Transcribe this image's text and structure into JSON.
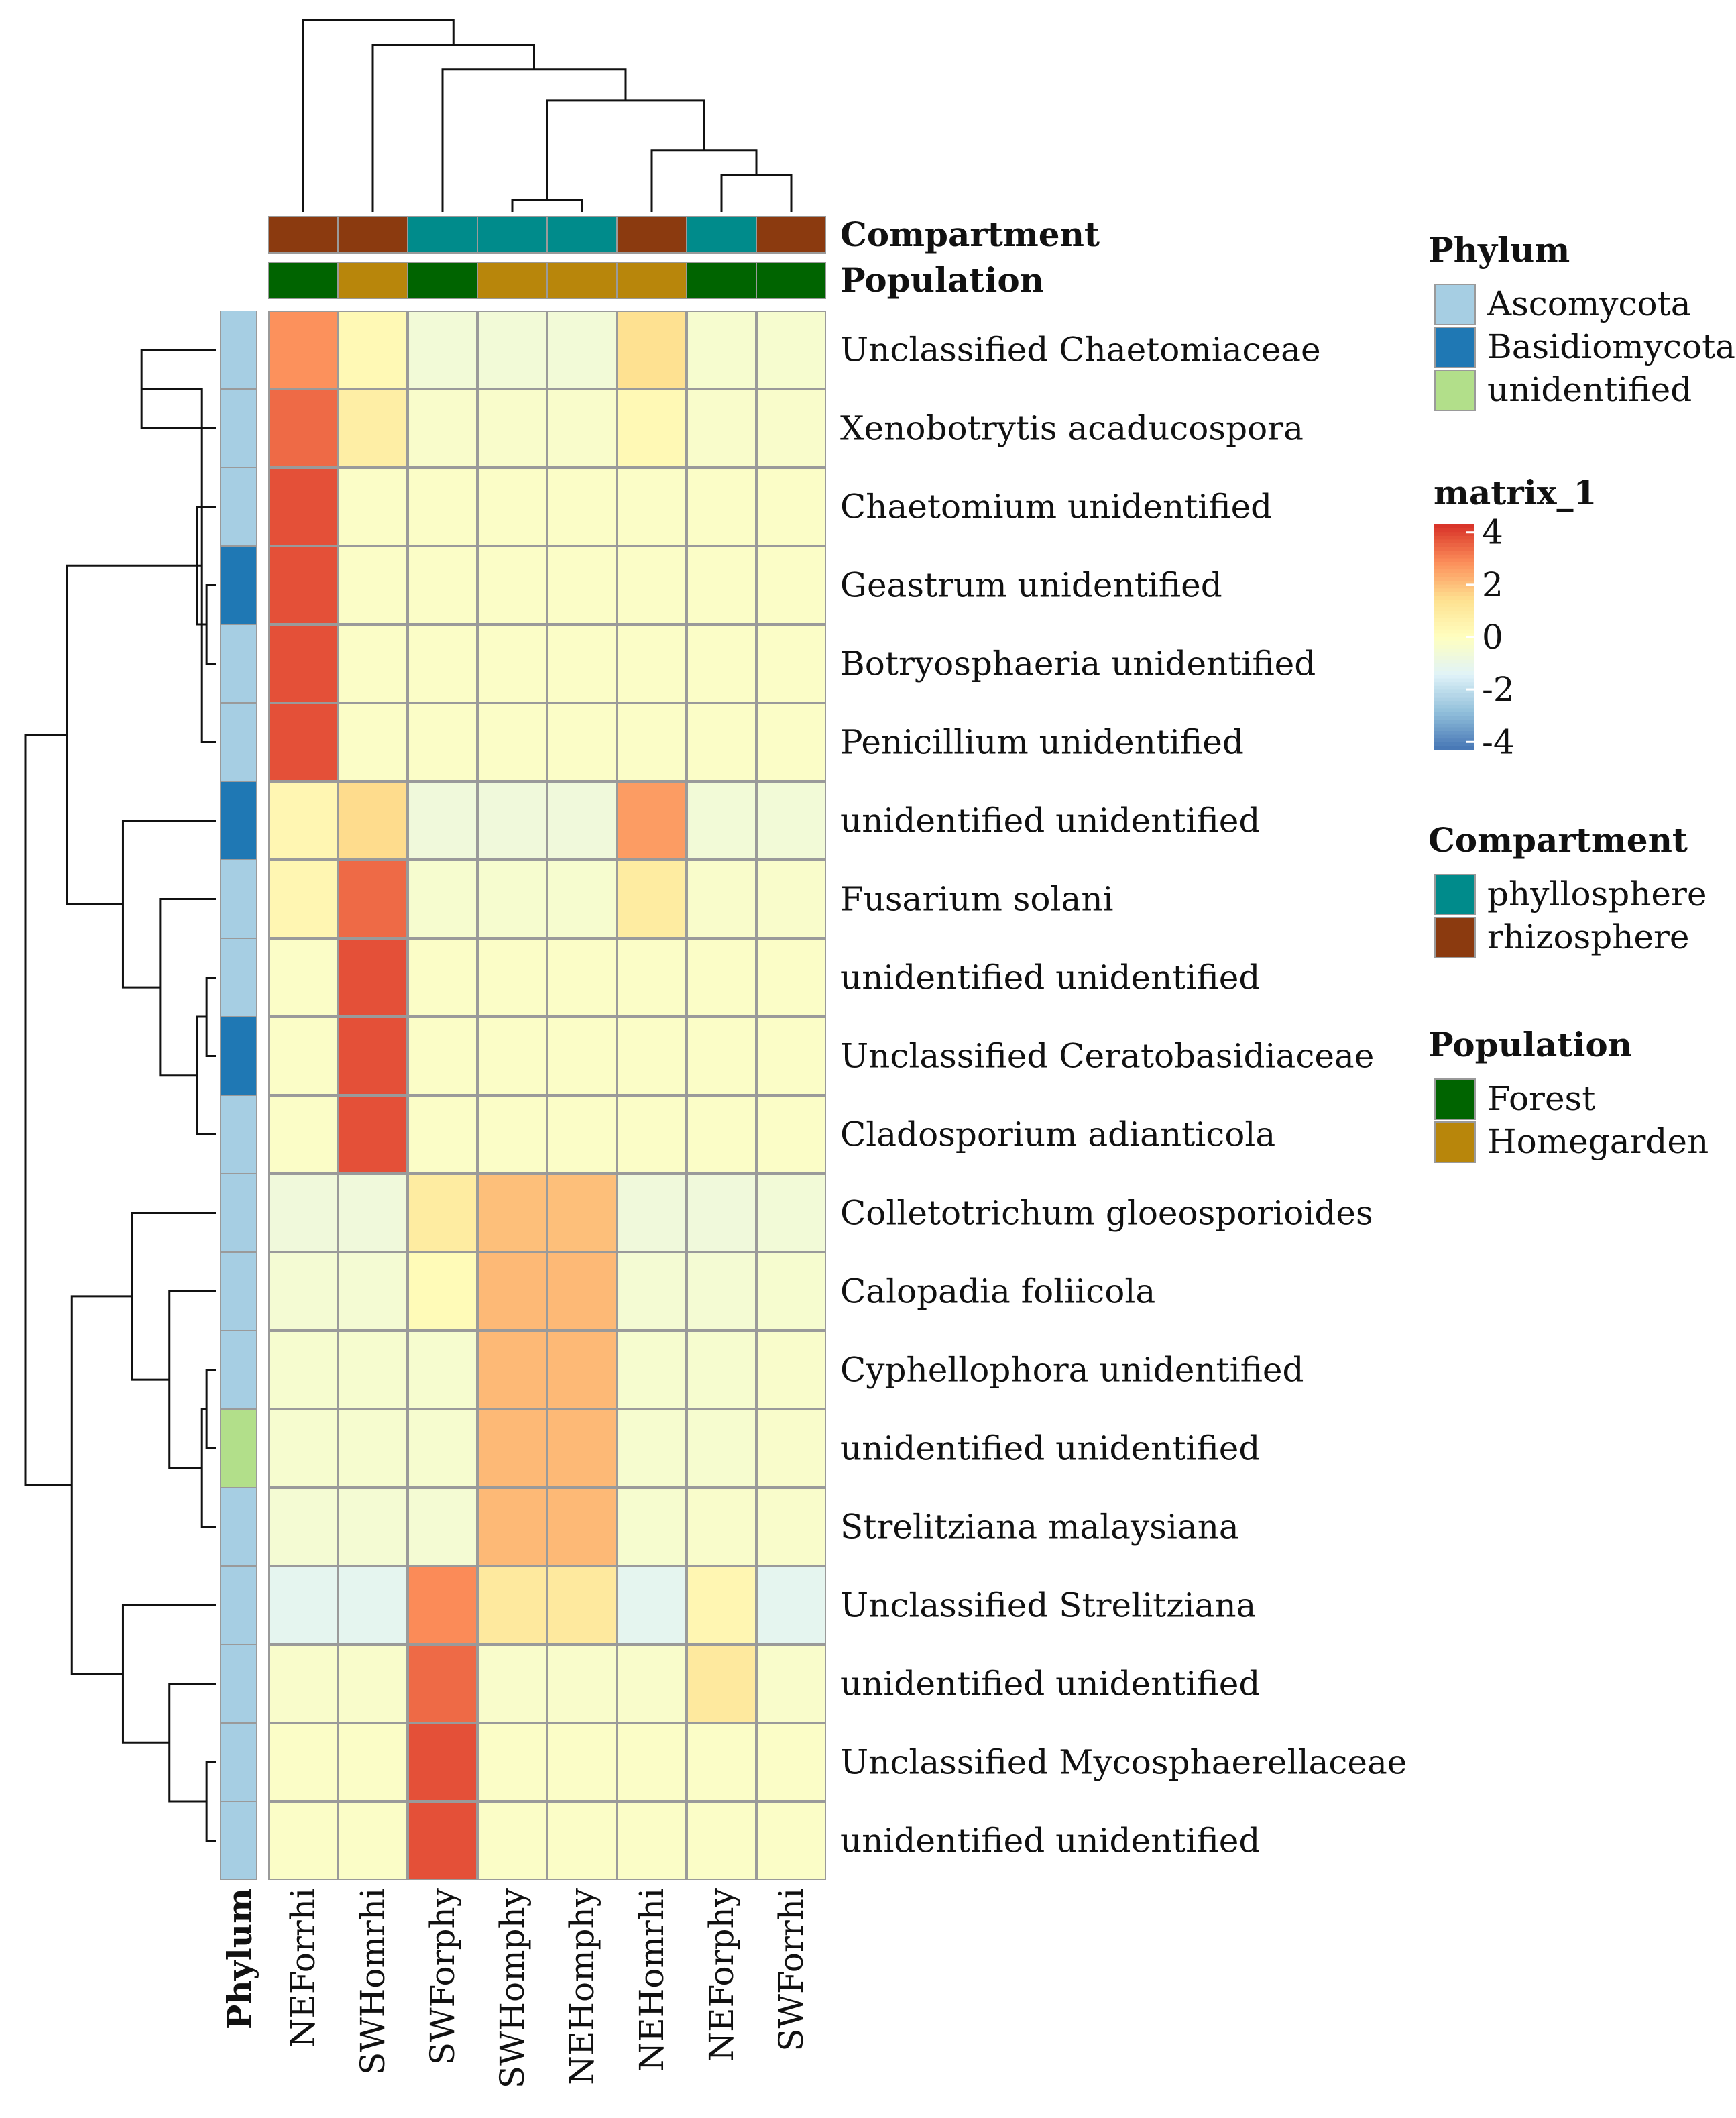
{
  "chart_data": {
    "type": "heatmap",
    "columns": [
      "NEForrhi",
      "SWHomrhi",
      "SWForphy",
      "SWHomphy",
      "NEHomphy",
      "NEHomrhi",
      "NEForphy",
      "SWForrhi"
    ],
    "rows": [
      "Unclassified Chaetomiaceae",
      "Xenobotrytis acaducospora",
      "Chaetomium unidentified",
      "Geastrum unidentified",
      "Botryosphaeria unidentified",
      "Penicillium unidentified",
      "unidentified unidentified",
      "Fusarium solani",
      "unidentified unidentified",
      "Unclassified Ceratobasidiaceae",
      "Cladosporium adianticola",
      "Colletotrichum gloeosporioides",
      "Calopadia foliicola",
      "Cyphellophora unidentified",
      "unidentified unidentified",
      "Strelitziana malaysiana",
      "Unclassified  Strelitziana",
      "unidentified unidentified",
      "Unclassified Mycosphaerellaceae",
      "unidentified unidentified"
    ],
    "values": [
      [
        2.8,
        0.3,
        -0.6,
        -0.6,
        -0.6,
        1.4,
        -0.4,
        -0.4
      ],
      [
        3.4,
        0.8,
        -0.3,
        -0.3,
        -0.3,
        0.3,
        -0.3,
        -0.3
      ],
      [
        3.8,
        -0.2,
        -0.2,
        -0.2,
        -0.2,
        -0.2,
        -0.2,
        -0.2
      ],
      [
        3.8,
        -0.2,
        -0.2,
        -0.2,
        -0.2,
        -0.2,
        -0.2,
        -0.2
      ],
      [
        3.8,
        -0.2,
        -0.2,
        -0.2,
        -0.2,
        -0.2,
        -0.2,
        -0.2
      ],
      [
        3.8,
        -0.2,
        -0.2,
        -0.2,
        -0.2,
        -0.2,
        -0.2,
        -0.2
      ],
      [
        0.4,
        1.5,
        -0.7,
        -0.7,
        -0.7,
        2.6,
        -0.6,
        -0.6
      ],
      [
        0.4,
        3.4,
        -0.4,
        -0.4,
        -0.4,
        0.9,
        -0.3,
        -0.3
      ],
      [
        -0.2,
        3.8,
        -0.2,
        -0.2,
        -0.2,
        -0.2,
        -0.2,
        -0.2
      ],
      [
        -0.2,
        3.8,
        -0.2,
        -0.2,
        -0.2,
        -0.2,
        -0.2,
        -0.2
      ],
      [
        -0.2,
        3.8,
        -0.2,
        -0.2,
        -0.2,
        -0.2,
        -0.2,
        -0.2
      ],
      [
        -0.7,
        -0.7,
        0.9,
        2.0,
        2.0,
        -0.7,
        -0.7,
        -0.6
      ],
      [
        -0.5,
        -0.5,
        0.2,
        2.1,
        2.1,
        -0.5,
        -0.5,
        -0.4
      ],
      [
        -0.4,
        -0.4,
        -0.4,
        2.1,
        2.1,
        -0.4,
        -0.4,
        -0.3
      ],
      [
        -0.4,
        -0.4,
        -0.4,
        2.1,
        2.1,
        -0.4,
        -0.4,
        -0.3
      ],
      [
        -0.5,
        -0.5,
        -0.5,
        2.1,
        2.1,
        -0.4,
        -0.3,
        -0.3
      ],
      [
        -1.2,
        -1.2,
        2.9,
        1.0,
        1.0,
        -1.2,
        0.4,
        -1.2
      ],
      [
        -0.3,
        -0.3,
        3.4,
        -0.3,
        -0.3,
        -0.3,
        1.0,
        -0.3
      ],
      [
        -0.2,
        -0.2,
        3.8,
        -0.2,
        -0.2,
        -0.2,
        -0.2,
        -0.2
      ],
      [
        -0.2,
        -0.2,
        3.8,
        -0.2,
        -0.2,
        -0.2,
        -0.2,
        -0.2
      ]
    ],
    "color_scale": {
      "name": "matrix_1",
      "range": [
        -4.3,
        4.3
      ],
      "ticks": [
        "4",
        "2",
        "0",
        "-2",
        "-4"
      ],
      "tick_values": [
        4,
        2,
        0,
        -2,
        -4
      ],
      "colors": [
        "#4575b4",
        "#91bfdb",
        "#e0f3f8",
        "#ffffbf",
        "#fee090",
        "#fc8d59",
        "#d73027"
      ]
    },
    "row_annotation": {
      "name": "Phylum",
      "values": [
        "Ascomycota",
        "Ascomycota",
        "Ascomycota",
        "Basidiomycota",
        "Ascomycota",
        "Ascomycota",
        "Basidiomycota",
        "Ascomycota",
        "Ascomycota",
        "Basidiomycota",
        "Ascomycota",
        "Ascomycota",
        "Ascomycota",
        "Ascomycota",
        "unidentified",
        "Ascomycota",
        "Ascomycota",
        "Ascomycota",
        "Ascomycota",
        "Ascomycota"
      ]
    },
    "column_annotations": [
      {
        "name": "Compartment",
        "values": [
          "rhizosphere",
          "rhizosphere",
          "phyllosphere",
          "phyllosphere",
          "phyllosphere",
          "rhizosphere",
          "phyllosphere",
          "rhizosphere"
        ]
      },
      {
        "name": "Population",
        "values": [
          "Forest",
          "Homegarden",
          "Forest",
          "Homegarden",
          "Homegarden",
          "Homegarden",
          "Forest",
          "Forest"
        ]
      }
    ],
    "legends": [
      {
        "title": "Phylum",
        "items": [
          {
            "label": "Ascomycota",
            "color": "#a6cee3"
          },
          {
            "label": "Basidiomycota",
            "color": "#1f78b4"
          },
          {
            "label": "unidentified",
            "color": "#b2df8a"
          }
        ]
      },
      {
        "title": "Compartment",
        "items": [
          {
            "label": "phyllosphere",
            "color": "#008b8b"
          },
          {
            "label": "rhizosphere",
            "color": "#8b3a0f"
          }
        ]
      },
      {
        "title": "Population",
        "items": [
          {
            "label": "Forest",
            "color": "#006400"
          },
          {
            "label": "Homegarden",
            "color": "#b8860b"
          }
        ]
      }
    ],
    "row_dendrogram": [
      [
        0,
        1,
        0.8
      ],
      [
        3,
        4,
        0.1
      ],
      [
        20,
        5,
        0.15
      ],
      [
        21,
        2,
        0.2
      ],
      [
        22,
        23,
        0.6
      ],
      [
        8,
        9,
        0.1
      ],
      [
        25,
        10,
        0.2
      ],
      [
        7,
        26,
        0.6
      ],
      [
        6,
        27,
        1.0
      ],
      [
        24,
        28,
        1.6
      ],
      [
        13,
        14,
        0.1
      ],
      [
        30,
        15,
        0.15
      ],
      [
        12,
        31,
        0.5
      ],
      [
        11,
        32,
        0.9
      ],
      [
        18,
        19,
        0.1
      ],
      [
        17,
        34,
        0.5
      ],
      [
        16,
        35,
        1.0
      ],
      [
        33,
        36,
        1.55
      ],
      [
        29,
        37,
        2.05
      ]
    ],
    "column_dendrogram": [
      [
        3,
        4,
        0.1
      ],
      [
        6,
        7,
        0.3
      ],
      [
        5,
        9,
        0.5
      ],
      [
        8,
        10,
        0.9
      ],
      [
        2,
        11,
        1.15
      ],
      [
        1,
        12,
        1.35
      ],
      [
        0,
        13,
        1.55
      ]
    ]
  }
}
